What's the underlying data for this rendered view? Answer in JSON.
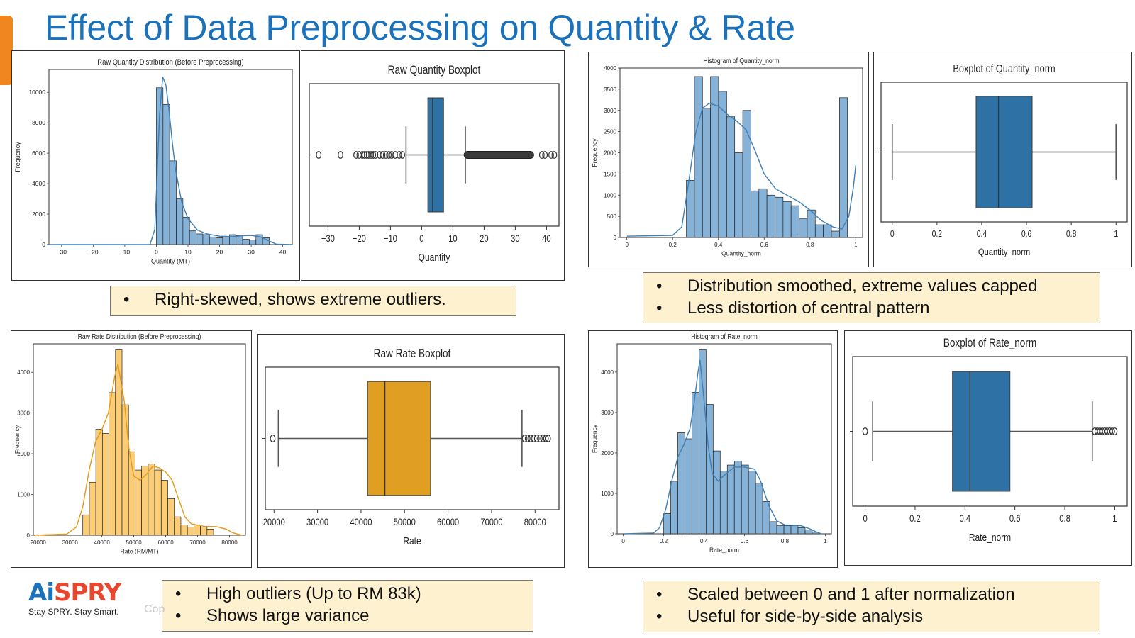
{
  "slide": {
    "title": "Effect of Data Preprocessing on Quantity & Rate",
    "copyright": "Cop"
  },
  "colors": {
    "title": "#1b72bb",
    "accent": "#f0861f",
    "hist_blue": "#86b2d8",
    "box_blue": "#2e72a5",
    "hist_orange": "#fbcd77",
    "box_orange": "#e09f23",
    "note_fill": "#fdf1cf"
  },
  "logo": {
    "mark_left": "Ai",
    "mark_right": "SPRY",
    "tagline": "Stay SPRY. Stay Smart."
  },
  "notes": {
    "raw_quantity": [
      "Right-skewed, shows extreme outliers."
    ],
    "norm_quantity": [
      "Distribution smoothed, extreme values capped",
      "Less distortion of central pattern"
    ],
    "raw_rate": [
      "High outliers (Up to RM 83k)",
      "Shows large variance"
    ],
    "norm_rate": [
      "Scaled between 0 and 1 after normalization",
      "Useful for side-by-side analysis"
    ]
  },
  "chart_data": [
    {
      "id": "raw_qty_hist",
      "type": "bar",
      "title": "Raw Quantity Distribution (Before Preprocessing)",
      "xlabel": "Quantity (MT)",
      "ylabel": "Frequency",
      "xlim": [
        -34,
        43
      ],
      "ylim": [
        0,
        11500
      ],
      "xticks": [
        -30,
        -20,
        -10,
        0,
        10,
        20,
        30,
        40
      ],
      "yticks": [
        0,
        2000,
        4000,
        6000,
        8000,
        10000
      ],
      "bins": {
        "start": 0,
        "width": 2.1,
        "values": [
          10300,
          9200,
          5500,
          3000,
          1800,
          900,
          700,
          650,
          500,
          450,
          500,
          650,
          600,
          350,
          300,
          650,
          450
        ]
      },
      "kde": [
        [
          -34,
          0
        ],
        [
          -2,
          10
        ],
        [
          -0.5,
          1000
        ],
        [
          0,
          3500
        ],
        [
          1,
          8500
        ],
        [
          2,
          11000
        ],
        [
          3,
          10500
        ],
        [
          4,
          8800
        ],
        [
          5,
          6800
        ],
        [
          6,
          5000
        ],
        [
          8,
          2800
        ],
        [
          10,
          1700
        ],
        [
          13,
          950
        ],
        [
          16,
          700
        ],
        [
          20,
          550
        ],
        [
          24,
          520
        ],
        [
          27,
          580
        ],
        [
          30,
          600
        ],
        [
          33,
          500
        ],
        [
          36,
          200
        ],
        [
          38,
          30
        ],
        [
          43,
          0
        ]
      ],
      "color": "#86b2d8",
      "line_color": "#3f7fb5",
      "grid": false
    },
    {
      "id": "raw_qty_box",
      "type": "boxplot",
      "title": "Raw Quantity Boxplot",
      "xlabel": "Quantity",
      "xlim": [
        -36,
        44
      ],
      "xticks": [
        -30,
        -20,
        -10,
        0,
        10,
        20,
        30,
        40
      ],
      "q1": 2,
      "median": 3.5,
      "q3": 7,
      "whisker_low": -5,
      "whisker_high": 14,
      "outliers": [
        -33,
        -26,
        -21,
        -20,
        -19,
        -18.3,
        -17.6,
        -17,
        -16.2,
        -15.5,
        -14.8,
        -13.5,
        -12.5,
        -11.5,
        -10.5,
        -9.6,
        -8.5,
        -7.2,
        -6.2,
        38.5,
        39.5,
        41.5,
        42.5
      ],
      "dense_outlier_range": [
        14.5,
        35
      ],
      "color": "#2e72a5"
    },
    {
      "id": "norm_qty_hist",
      "type": "bar",
      "title": "Histogram of Quantity_norm",
      "xlabel": "Quantity_norm",
      "ylabel": "Frequency",
      "xlim": [
        -0.03,
        1.03
      ],
      "ylim": [
        0,
        4000
      ],
      "xticks": [
        0.0,
        0.2,
        0.4,
        0.6,
        0.8,
        1.0
      ],
      "yticks": [
        0,
        500,
        1000,
        1500,
        2000,
        2500,
        3000,
        3500,
        4000
      ],
      "bins": {
        "start": 0.26,
        "width": 0.0352,
        "values": [
          1350,
          3800,
          3050,
          3800,
          3450,
          2850,
          2000,
          3000,
          1100,
          1150,
          1000,
          950,
          850,
          750,
          450,
          650,
          300,
          300,
          150,
          3300
        ]
      },
      "kde": [
        [
          0,
          30
        ],
        [
          0.2,
          50
        ],
        [
          0.24,
          250
        ],
        [
          0.27,
          1300
        ],
        [
          0.3,
          2450
        ],
        [
          0.33,
          3050
        ],
        [
          0.36,
          3170
        ],
        [
          0.4,
          3100
        ],
        [
          0.44,
          2900
        ],
        [
          0.48,
          2750
        ],
        [
          0.52,
          2550
        ],
        [
          0.56,
          2050
        ],
        [
          0.6,
          1500
        ],
        [
          0.65,
          1150
        ],
        [
          0.7,
          1000
        ],
        [
          0.75,
          850
        ],
        [
          0.8,
          650
        ],
        [
          0.85,
          400
        ],
        [
          0.9,
          250
        ],
        [
          0.94,
          200
        ],
        [
          0.97,
          500
        ],
        [
          0.99,
          1200
        ],
        [
          1.0,
          1700
        ]
      ],
      "color": "#86b2d8",
      "line_color": "#3f7fb5",
      "grid": false
    },
    {
      "id": "norm_qty_box",
      "type": "boxplot",
      "title": "Boxplot of Quantity_norm",
      "xlabel": "Quantity_norm",
      "xlim": [
        -0.05,
        1.05
      ],
      "xticks": [
        0.0,
        0.2,
        0.4,
        0.6,
        0.8,
        1.0
      ],
      "q1": 0.375,
      "median": 0.475,
      "q3": 0.625,
      "whisker_low": 0.0,
      "whisker_high": 1.0,
      "outliers": [],
      "dense_outlier_range": null,
      "color": "#2e72a5"
    },
    {
      "id": "raw_rate_hist",
      "type": "bar",
      "title": "Raw Rate Distribution (Before Preprocessing)",
      "xlabel": "Rate (RM/MT)",
      "ylabel": "Frequency",
      "xlim": [
        18500,
        85000
      ],
      "ylim": [
        0,
        4700
      ],
      "xticks": [
        20000,
        30000,
        40000,
        50000,
        60000,
        70000,
        80000
      ],
      "yticks": [
        0,
        1000,
        2000,
        3000,
        4000
      ],
      "bins": {
        "start": 34000,
        "width": 2050,
        "values": [
          500,
          1300,
          2600,
          2500,
          3500,
          4550,
          3200,
          2050,
          1600,
          1700,
          1750,
          1600,
          1350,
          900,
          450,
          250,
          200,
          250,
          200,
          150
        ]
      },
      "kde": [
        [
          19000,
          0
        ],
        [
          29000,
          30
        ],
        [
          32000,
          200
        ],
        [
          34000,
          700
        ],
        [
          36000,
          1600
        ],
        [
          38000,
          2300
        ],
        [
          40000,
          2600
        ],
        [
          42000,
          3000
        ],
        [
          44000,
          3900
        ],
        [
          45000,
          4200
        ],
        [
          47000,
          3300
        ],
        [
          48500,
          2100
        ],
        [
          50000,
          1450
        ],
        [
          52000,
          1350
        ],
        [
          54000,
          1500
        ],
        [
          56000,
          1700
        ],
        [
          58000,
          1650
        ],
        [
          60000,
          1550
        ],
        [
          62000,
          1350
        ],
        [
          64000,
          900
        ],
        [
          66000,
          450
        ],
        [
          68000,
          280
        ],
        [
          72000,
          220
        ],
        [
          76000,
          210
        ],
        [
          79000,
          150
        ],
        [
          81000,
          60
        ],
        [
          84000,
          0
        ]
      ],
      "color": "#fbcd77",
      "line_color": "#e59a17",
      "grid": false
    },
    {
      "id": "raw_rate_box",
      "type": "boxplot",
      "title": "Raw Rate Boxplot",
      "xlabel": "Rate",
      "xlim": [
        18000,
        85500
      ],
      "xticks": [
        20000,
        30000,
        40000,
        50000,
        60000,
        70000,
        80000
      ],
      "q1": 41500,
      "median": 45500,
      "q3": 56000,
      "whisker_low": 21000,
      "whisker_high": 77000,
      "outliers": [
        19700,
        77600,
        78300,
        79000,
        79700,
        80400,
        81100,
        81800,
        82500,
        83000
      ],
      "dense_outlier_range": null,
      "color": "#e09f23"
    },
    {
      "id": "norm_rate_hist",
      "type": "bar",
      "title": "Histogram of Rate_norm",
      "xlabel": "Rate_norm",
      "ylabel": "Frequency",
      "xlim": [
        -0.03,
        1.03
      ],
      "ylim": [
        0,
        4700
      ],
      "xticks": [
        0.0,
        0.2,
        0.4,
        0.6,
        0.8,
        1.0
      ],
      "yticks": [
        0,
        1000,
        2000,
        3000,
        4000
      ],
      "bins": {
        "start": 0.2,
        "width": 0.035,
        "values": [
          500,
          1300,
          2500,
          2350,
          3500,
          4550,
          3200,
          2050,
          1550,
          1700,
          1800,
          1700,
          1550,
          1250,
          800,
          300,
          200,
          200,
          200,
          150,
          100,
          40
        ]
      },
      "kde": [
        [
          0,
          0
        ],
        [
          0.15,
          20
        ],
        [
          0.18,
          150
        ],
        [
          0.21,
          600
        ],
        [
          0.24,
          1300
        ],
        [
          0.27,
          1900
        ],
        [
          0.3,
          2200
        ],
        [
          0.33,
          2600
        ],
        [
          0.35,
          3200
        ],
        [
          0.37,
          4000
        ],
        [
          0.38,
          4300
        ],
        [
          0.4,
          3300
        ],
        [
          0.42,
          2200
        ],
        [
          0.44,
          1500
        ],
        [
          0.47,
          1300
        ],
        [
          0.5,
          1450
        ],
        [
          0.55,
          1650
        ],
        [
          0.6,
          1650
        ],
        [
          0.65,
          1600
        ],
        [
          0.68,
          1300
        ],
        [
          0.72,
          700
        ],
        [
          0.76,
          320
        ],
        [
          0.8,
          220
        ],
        [
          0.88,
          200
        ],
        [
          0.92,
          130
        ],
        [
          0.95,
          60
        ],
        [
          0.98,
          0
        ]
      ],
      "color": "#86b2d8",
      "line_color": "#3f7fb5",
      "grid": false
    },
    {
      "id": "norm_rate_box",
      "type": "boxplot",
      "title": "Boxplot of Rate_norm",
      "xlabel": "Rate_norm",
      "xlim": [
        -0.05,
        1.05
      ],
      "xticks": [
        0.0,
        0.2,
        0.4,
        0.6,
        0.8,
        1.0
      ],
      "q1": 0.35,
      "median": 0.42,
      "q3": 0.58,
      "whisker_low": 0.03,
      "whisker_high": 0.91,
      "outliers": [
        0.0,
        0.92,
        0.93,
        0.94,
        0.95,
        0.96,
        0.97,
        0.98,
        0.99,
        1.0
      ],
      "dense_outlier_range": null,
      "color": "#2e72a5"
    }
  ]
}
